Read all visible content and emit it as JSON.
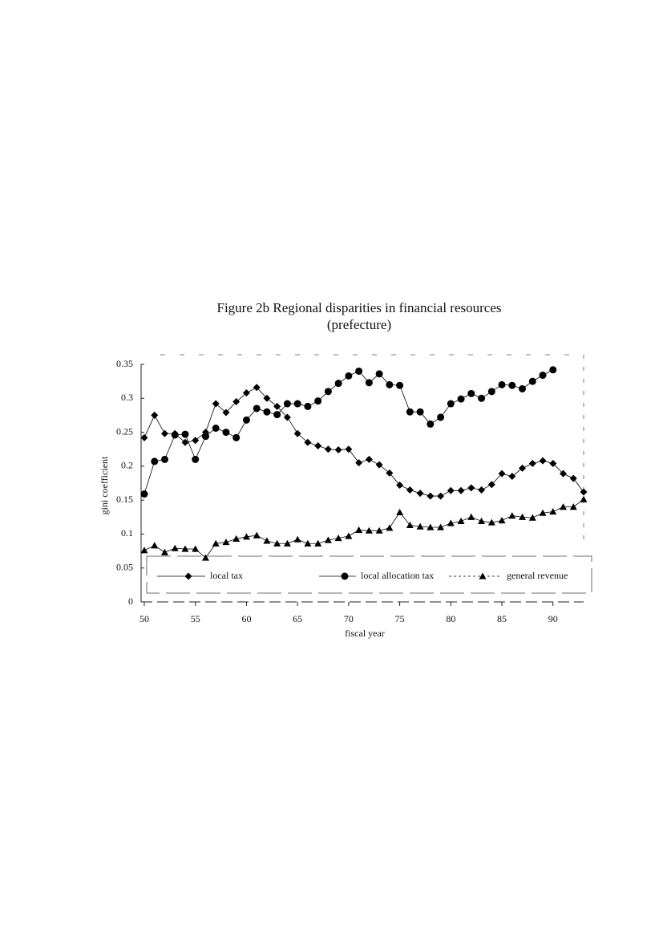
{
  "chart_data": {
    "type": "line",
    "title": "Figure 2b  Regional disparities in financial resources",
    "subtitle": "(prefecture)",
    "x_label": "fiscal year",
    "y_label": "gini coefficient",
    "x": [
      50,
      51,
      52,
      53,
      54,
      55,
      56,
      57,
      58,
      59,
      60,
      61,
      62,
      63,
      64,
      65,
      66,
      67,
      68,
      69,
      70,
      71,
      72,
      73,
      74,
      75,
      76,
      77,
      78,
      79,
      80,
      81,
      82,
      83,
      84,
      85,
      86,
      87,
      88,
      89,
      90,
      91,
      92,
      93
    ],
    "series": [
      {
        "name": "local tax",
        "color": "#000000",
        "marker": "diamond",
        "values": [
          0.242,
          0.275,
          0.248,
          0.248,
          0.235,
          0.238,
          0.25,
          0.292,
          0.279,
          0.295,
          0.308,
          0.316,
          0.3,
          0.288,
          0.272,
          0.248,
          0.235,
          0.23,
          0.225,
          0.224,
          0.225,
          0.205,
          0.21,
          0.202,
          0.19,
          0.172,
          0.165,
          0.16,
          0.156,
          0.156,
          0.164,
          0.164,
          0.168,
          0.165,
          0.173,
          0.189,
          0.185,
          0.197,
          0.204,
          0.208,
          0.204,
          0.189,
          0.182,
          0.162
        ]
      },
      {
        "name": "local allocation tax",
        "color": "#000000",
        "marker": "circle",
        "values": [
          0.159,
          0.207,
          0.21,
          0.246,
          0.247,
          0.21,
          0.244,
          0.256,
          0.25,
          0.242,
          0.268,
          0.285,
          0.28,
          0.276,
          0.292,
          0.292,
          0.288,
          0.296,
          0.31,
          0.322,
          0.333,
          0.34,
          0.323,
          0.336,
          0.32,
          0.319,
          0.28,
          0.28,
          0.262,
          0.272,
          0.292,
          0.299,
          0.307,
          0.3,
          0.31,
          0.32,
          0.319,
          0.314,
          0.325,
          0.334,
          0.342,
          null,
          null,
          null
        ]
      },
      {
        "name": "general revenue",
        "color": "#000000",
        "marker": "triangle",
        "values": [
          0.076,
          0.083,
          0.073,
          0.079,
          0.078,
          0.078,
          0.065,
          0.086,
          0.088,
          0.093,
          0.096,
          0.098,
          0.09,
          0.086,
          0.086,
          0.092,
          0.086,
          0.086,
          0.091,
          0.094,
          0.097,
          0.106,
          0.105,
          0.105,
          0.109,
          0.132,
          0.113,
          0.111,
          0.11,
          0.11,
          0.116,
          0.119,
          0.125,
          0.119,
          0.117,
          0.12,
          0.127,
          0.125,
          0.124,
          0.131,
          0.133,
          0.14,
          0.14,
          0.151
        ]
      }
    ],
    "xlim": [
      50,
      93
    ],
    "xticks": [
      50,
      55,
      60,
      65,
      70,
      75,
      80,
      85,
      90
    ],
    "ylim": [
      0,
      0.35
    ],
    "yticks": [
      0,
      0.05,
      0.1,
      0.15,
      0.2,
      0.25,
      0.3,
      0.35
    ],
    "grid": false,
    "legend": "bottom"
  }
}
